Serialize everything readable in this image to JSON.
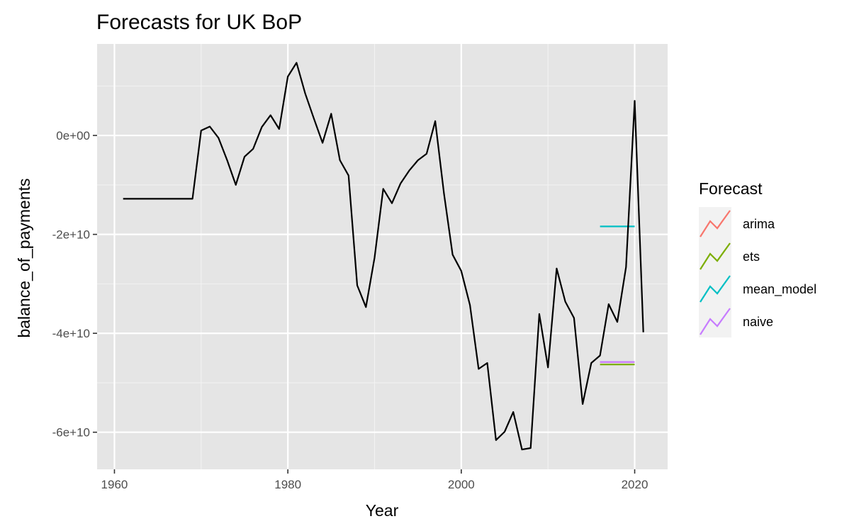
{
  "chart_data": {
    "type": "line",
    "title": "Forecasts for UK BoP",
    "xlabel": "Year",
    "ylabel": "balance_of_payments",
    "xlim": [
      1958,
      2023.8
    ],
    "ylim": [
      -67500000000.0,
      18500000000.0
    ],
    "x_ticks": [
      {
        "value": 1960,
        "label": "1960"
      },
      {
        "value": 1980,
        "label": "1980"
      },
      {
        "value": 2000,
        "label": "2000"
      },
      {
        "value": 2020,
        "label": "2020"
      }
    ],
    "y_ticks": [
      {
        "value": 0,
        "label": "0e+00"
      },
      {
        "value": -20000000000.0,
        "label": "-2e+10"
      },
      {
        "value": -40000000000.0,
        "label": "-4e+10"
      },
      {
        "value": -60000000000.0,
        "label": "-6e+10"
      }
    ],
    "grid": true,
    "background": "#e5e5e5",
    "actual": {
      "color": "#000000",
      "x": [
        1961,
        1962,
        1963,
        1964,
        1965,
        1966,
        1967,
        1968,
        1969,
        1970,
        1971,
        1972,
        1973,
        1974,
        1975,
        1976,
        1977,
        1978,
        1979,
        1980,
        1981,
        1982,
        1983,
        1984,
        1985,
        1986,
        1987,
        1988,
        1989,
        1990,
        1991,
        1992,
        1993,
        1994,
        1995,
        1996,
        1997,
        1998,
        1999,
        2000,
        2001,
        2002,
        2003,
        2004,
        2005,
        2006,
        2007,
        2008,
        2009,
        2010,
        2011,
        2012,
        2013,
        2014,
        2015,
        2016,
        2017,
        2018,
        2019,
        2020,
        2021
      ],
      "y": [
        -12800000000.0,
        -12800000000.0,
        -12800000000.0,
        -12800000000.0,
        -12800000000.0,
        -12800000000.0,
        -12800000000.0,
        -12800000000.0,
        -12800000000.0,
        1000000000.0,
        1800000000.0,
        -500000000.0,
        -5000000000.0,
        -10000000000.0,
        -4300000000.0,
        -2700000000.0,
        1700000000.0,
        4100000000.0,
        1300000000.0,
        11900000000.0,
        14700000000.0,
        8500000000.0,
        3400000000.0,
        -1500000000.0,
        4400000000.0,
        -5000000000.0,
        -8100000000.0,
        -30300000000.0,
        -34700000000.0,
        -24700000000.0,
        -10800000000.0,
        -13700000000.0,
        -9700000000.0,
        -7100000000.0,
        -5000000000.0,
        -3700000000.0,
        2900000000.0,
        -11700000000.0,
        -24100000000.0,
        -27400000000.0,
        -34300000000.0,
        -47200000000.0,
        -46000000000.0,
        -61600000000.0,
        -59900000000.0,
        -55900000000.0,
        -63500000000.0,
        -63200000000.0,
        -36100000000.0,
        -46900000000.0,
        -26900000000.0,
        -33600000000.0,
        -36900000000.0,
        -54300000000.0,
        -46000000000.0,
        -44500000000.0,
        -34100000000.0,
        -37700000000.0,
        -26600000000.0,
        7000000000.0,
        -39800000000.0
      ]
    },
    "forecasts": [
      {
        "name": "arima",
        "color": "#F8766D",
        "x": [
          2016,
          2020
        ],
        "y": [
          -45800000000.0,
          -45800000000.0
        ]
      },
      {
        "name": "ets",
        "color": "#7CAE00",
        "x": [
          2016,
          2020
        ],
        "y": [
          -46300000000.0,
          -46300000000.0
        ]
      },
      {
        "name": "mean_model",
        "color": "#00BFC4",
        "x": [
          2016,
          2020
        ],
        "y": [
          -18400000000.0,
          -18400000000.0
        ]
      },
      {
        "name": "naive",
        "color": "#C77CFF",
        "x": [
          2016,
          2020
        ],
        "y": [
          -45800000000.0,
          -45800000000.0
        ]
      }
    ],
    "legend": {
      "title": "Forecast",
      "position": "right",
      "entries": [
        {
          "label": "arima",
          "color": "#F8766D"
        },
        {
          "label": "ets",
          "color": "#7CAE00"
        },
        {
          "label": "mean_model",
          "color": "#00BFC4"
        },
        {
          "label": "naive",
          "color": "#C77CFF"
        }
      ]
    }
  }
}
